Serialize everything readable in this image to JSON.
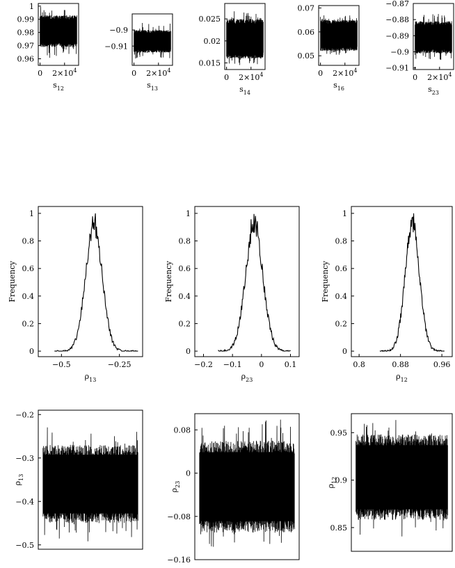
{
  "chart_data": [
    {
      "id": "trace-s12",
      "type": "line",
      "xlabel": "s",
      "xlabel_sub": "12",
      "ylabel": "",
      "x_range": [
        0,
        30000
      ],
      "ylim": [
        0.955,
        1.002
      ],
      "xticks": [
        {
          "v": 0,
          "label": "0"
        },
        {
          "v": 20000,
          "label": "2×10",
          "sup": "4"
        }
      ],
      "yticks": [
        {
          "v": 1,
          "label": "1"
        },
        {
          "v": 0.99,
          "label": "0.99"
        },
        {
          "v": 0.98,
          "label": "0.98"
        },
        {
          "v": 0.97,
          "label": "0.97"
        },
        {
          "v": 0.96,
          "label": "0.96"
        }
      ],
      "series": [
        {
          "mean": 0.981,
          "band": 0.012,
          "spike": 0.021,
          "n": 220
        }
      ]
    },
    {
      "id": "trace-s13",
      "type": "line",
      "xlabel": "s",
      "xlabel_sub": "13",
      "ylabel": "",
      "x_range": [
        0,
        30000
      ],
      "ylim": [
        -0.922,
        -0.89
      ],
      "xticks": [
        {
          "v": 0,
          "label": "0"
        },
        {
          "v": 20000,
          "label": "2×10",
          "sup": "4"
        }
      ],
      "yticks": [
        {
          "v": -0.9,
          "label": "−0.9"
        },
        {
          "v": -0.91,
          "label": "−0.91"
        }
      ],
      "series": [
        {
          "mean": -0.907,
          "band": 0.007,
          "spike": 0.012,
          "n": 220
        }
      ]
    },
    {
      "id": "trace-s14",
      "type": "line",
      "xlabel": "s",
      "xlabel_sub": "14",
      "ylabel": "",
      "x_range": [
        0,
        30000
      ],
      "ylim": [
        0.0135,
        0.0285
      ],
      "xticks": [
        {
          "v": 0,
          "label": "0"
        },
        {
          "v": 20000,
          "label": "2×10",
          "sup": "4"
        }
      ],
      "yticks": [
        {
          "v": 0.025,
          "label": "0.025"
        },
        {
          "v": 0.02,
          "label": "0.02"
        },
        {
          "v": 0.015,
          "label": "0.015"
        }
      ],
      "series": [
        {
          "mean": 0.0205,
          "band": 0.0045,
          "spike": 0.0065,
          "n": 220
        }
      ]
    },
    {
      "id": "trace-s16",
      "type": "line",
      "xlabel": "s",
      "xlabel_sub": "16",
      "ylabel": "",
      "x_range": [
        0,
        30000
      ],
      "ylim": [
        0.046,
        0.071
      ],
      "xticks": [
        {
          "v": 0,
          "label": "0"
        },
        {
          "v": 20000,
          "label": "2×10",
          "sup": "4"
        }
      ],
      "yticks": [
        {
          "v": 0.07,
          "label": "0.07"
        },
        {
          "v": 0.06,
          "label": "0.06"
        },
        {
          "v": 0.05,
          "label": "0.05"
        }
      ],
      "series": [
        {
          "mean": 0.0585,
          "band": 0.0065,
          "spike": 0.009,
          "n": 220
        }
      ]
    },
    {
      "id": "trace-s23",
      "type": "line",
      "xlabel": "s",
      "xlabel_sub": "23",
      "ylabel": "",
      "x_range": [
        0,
        30000
      ],
      "ylim": [
        -0.911,
        -0.87
      ],
      "xticks": [
        {
          "v": 0,
          "label": "0"
        },
        {
          "v": 20000,
          "label": "2×10",
          "sup": "4"
        }
      ],
      "yticks": [
        {
          "v": -0.87,
          "label": "−0.87"
        },
        {
          "v": -0.88,
          "label": "−0.88"
        },
        {
          "v": -0.89,
          "label": "−0.89"
        },
        {
          "v": -0.9,
          "label": "−0.9"
        },
        {
          "v": -0.91,
          "label": "−0.91"
        }
      ],
      "series": [
        {
          "mean": -0.891,
          "band": 0.01,
          "spike": 0.016,
          "n": 220
        }
      ]
    },
    {
      "id": "hist-rho13",
      "type": "line",
      "xlabel": "ρ",
      "xlabel_sub": "13",
      "ylabel": "Frequency",
      "xlim": [
        -0.6,
        -0.15
      ],
      "ylim": [
        -0.04,
        1.05
      ],
      "xticks": [
        {
          "v": -0.5,
          "label": "−0.5"
        },
        {
          "v": -0.25,
          "label": "−0.25"
        }
      ],
      "yticks": [
        {
          "v": 1,
          "label": "1"
        },
        {
          "v": 0.8,
          "label": "0.8"
        },
        {
          "v": 0.6,
          "label": "0.6"
        },
        {
          "v": 0.4,
          "label": "0.4"
        },
        {
          "v": 0.2,
          "label": "0.2"
        },
        {
          "v": 0,
          "label": "0"
        }
      ],
      "series": [
        {
          "center": -0.36,
          "sigma": 0.036,
          "peak": 0.9,
          "x0": -0.53,
          "x1": -0.17,
          "n": 150
        }
      ]
    },
    {
      "id": "hist-rho23",
      "type": "line",
      "xlabel": "ρ",
      "xlabel_sub": "23",
      "ylabel": "Frequency",
      "xlim": [
        -0.23,
        0.13
      ],
      "ylim": [
        -0.04,
        1.05
      ],
      "xticks": [
        {
          "v": -0.2,
          "label": "−0.2"
        },
        {
          "v": -0.1,
          "label": "−0.1"
        },
        {
          "v": 0,
          "label": "0"
        },
        {
          "v": 0.1,
          "label": "0.1"
        }
      ],
      "yticks": [
        {
          "v": 1,
          "label": "1"
        },
        {
          "v": 0.8,
          "label": "0.8"
        },
        {
          "v": 0.6,
          "label": "0.6"
        },
        {
          "v": 0.4,
          "label": "0.4"
        },
        {
          "v": 0.2,
          "label": "0.2"
        },
        {
          "v": 0,
          "label": "0"
        }
      ],
      "series": [
        {
          "center": -0.025,
          "sigma": 0.03,
          "peak": 0.9,
          "x0": -0.15,
          "x1": 0.1,
          "n": 150
        }
      ]
    },
    {
      "id": "hist-rho12",
      "type": "line",
      "xlabel": "ρ",
      "xlabel_sub": "12",
      "ylabel": "Frequency",
      "xlim": [
        0.785,
        0.98
      ],
      "ylim": [
        -0.04,
        1.05
      ],
      "xticks": [
        {
          "v": 0.8,
          "label": "0.8"
        },
        {
          "v": 0.88,
          "label": "0.88"
        },
        {
          "v": 0.96,
          "label": "0.96"
        }
      ],
      "yticks": [
        {
          "v": 1,
          "label": "1"
        },
        {
          "v": 0.8,
          "label": "0.8"
        },
        {
          "v": 0.6,
          "label": "0.6"
        },
        {
          "v": 0.4,
          "label": "0.4"
        },
        {
          "v": 0.2,
          "label": "0.2"
        },
        {
          "v": 0,
          "label": "0"
        }
      ],
      "series": [
        {
          "center": 0.903,
          "sigma": 0.014,
          "peak": 0.92,
          "x0": 0.84,
          "x1": 0.965,
          "n": 150
        }
      ]
    },
    {
      "id": "trace-rho13",
      "type": "line",
      "xlabel": "",
      "ylabel": "ρ",
      "ylabel_sub": "13",
      "x_range": [
        0,
        30000
      ],
      "ylim": [
        -0.51,
        -0.19
      ],
      "xticks": [],
      "yticks": [
        {
          "v": -0.2,
          "label": "−0.2"
        },
        {
          "v": -0.3,
          "label": "−0.3"
        },
        {
          "v": -0.4,
          "label": "−0.4"
        },
        {
          "v": -0.5,
          "label": "−0.5"
        }
      ],
      "series": [
        {
          "mean": -0.36,
          "band": 0.09,
          "spike": 0.135,
          "n": 240
        }
      ]
    },
    {
      "id": "trace-rho23",
      "type": "line",
      "xlabel": "",
      "ylabel": "ρ",
      "ylabel_sub": "23",
      "x_range": [
        0,
        30000
      ],
      "ylim": [
        -0.16,
        0.11
      ],
      "xticks": [],
      "yticks": [
        {
          "v": 0.08,
          "label": "0.08"
        },
        {
          "v": 0,
          "label": "0"
        },
        {
          "v": -0.08,
          "label": "−0.08"
        },
        {
          "v": -0.16,
          "label": "−0.16"
        }
      ],
      "series": [
        {
          "mean": -0.025,
          "band": 0.085,
          "spike": 0.13,
          "n": 240
        }
      ]
    },
    {
      "id": "trace-rho12",
      "type": "line",
      "xlabel": "",
      "ylabel": "ρ",
      "ylabel_sub": "12",
      "x_range": [
        0,
        30000
      ],
      "ylim": [
        0.825,
        0.97
      ],
      "xticks": [],
      "yticks": [
        {
          "v": 0.95,
          "label": "0.95"
        },
        {
          "v": 0.9,
          "label": "0.9"
        },
        {
          "v": 0.85,
          "label": "0.85"
        }
      ],
      "series": [
        {
          "mean": 0.903,
          "band": 0.045,
          "spike": 0.065,
          "n": 240
        }
      ]
    }
  ]
}
